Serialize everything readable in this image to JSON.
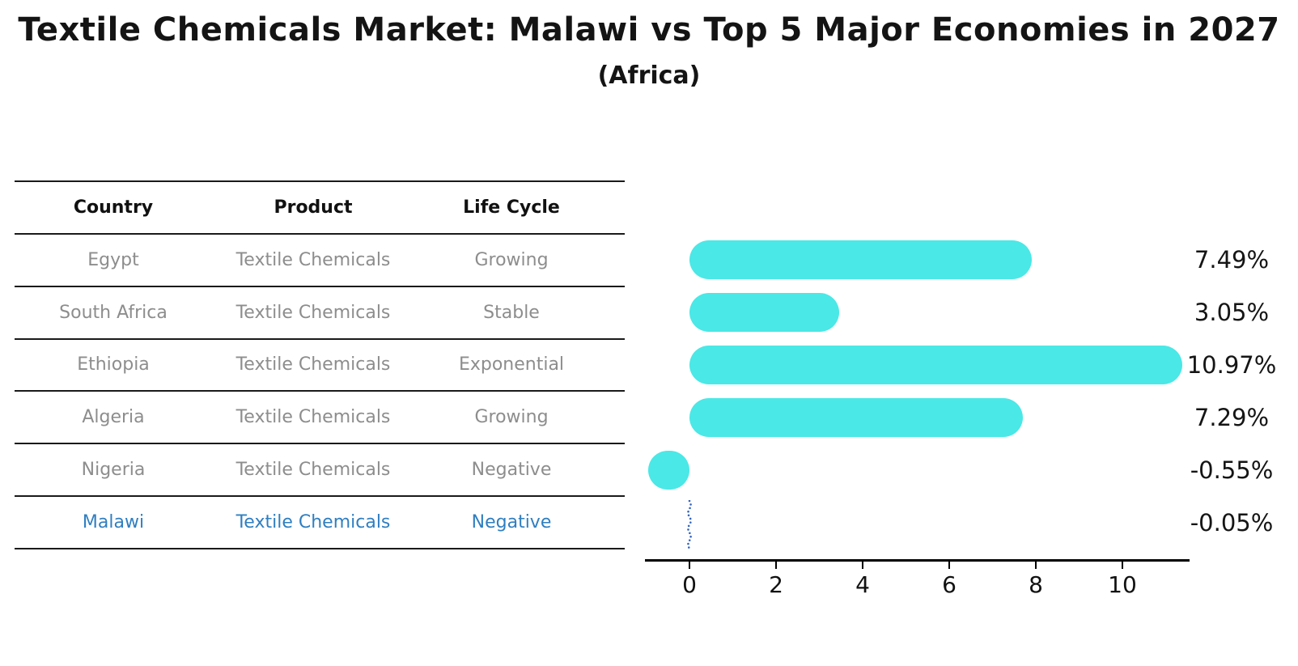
{
  "title": "Textile Chemicals Market: Malawi vs Top 5 Major Economies in 2027",
  "subtitle": "(Africa)",
  "table": {
    "headers": [
      "Country",
      "Product",
      "Life Cycle"
    ],
    "rows": [
      {
        "country": "Egypt",
        "product": "Textile Chemicals",
        "life_cycle": "Growing",
        "highlight": false
      },
      {
        "country": "South Africa",
        "product": "Textile Chemicals",
        "life_cycle": "Stable",
        "highlight": false
      },
      {
        "country": "Ethiopia",
        "product": "Textile Chemicals",
        "life_cycle": "Exponential",
        "highlight": false
      },
      {
        "country": "Algeria",
        "product": "Textile Chemicals",
        "life_cycle": "Growing",
        "highlight": false
      },
      {
        "country": "Nigeria",
        "product": "Textile Chemicals",
        "life_cycle": "Negative",
        "highlight": false
      },
      {
        "country": "Malawi",
        "product": "Textile Chemicals",
        "life_cycle": "Negative",
        "highlight": true
      }
    ]
  },
  "chart_data": {
    "type": "bar",
    "orientation": "horizontal",
    "title": "Textile Chemicals Market: Malawi vs Top 5 Major Economies in 2027",
    "subtitle": "(Africa)",
    "categories": [
      "Egypt",
      "South Africa",
      "Ethiopia",
      "Algeria",
      "Nigeria",
      "Malawi"
    ],
    "values": [
      7.49,
      3.05,
      10.97,
      7.29,
      -0.55,
      -0.05
    ],
    "value_labels": [
      "7.49%",
      "3.05%",
      "10.97%",
      "7.29%",
      "-0.55%",
      "-0.05%"
    ],
    "x_ticks": [
      0,
      2,
      4,
      6,
      8,
      10
    ],
    "xlim": [
      -1.03,
      11.57
    ],
    "grid": false,
    "legend": "none",
    "bar_color": "#4AE8E6",
    "highlight_index": 5,
    "highlight_marker_color": "#3465c0",
    "text_gray": "#8d8d8d",
    "highlight_text_color": "#2f7fc1"
  }
}
